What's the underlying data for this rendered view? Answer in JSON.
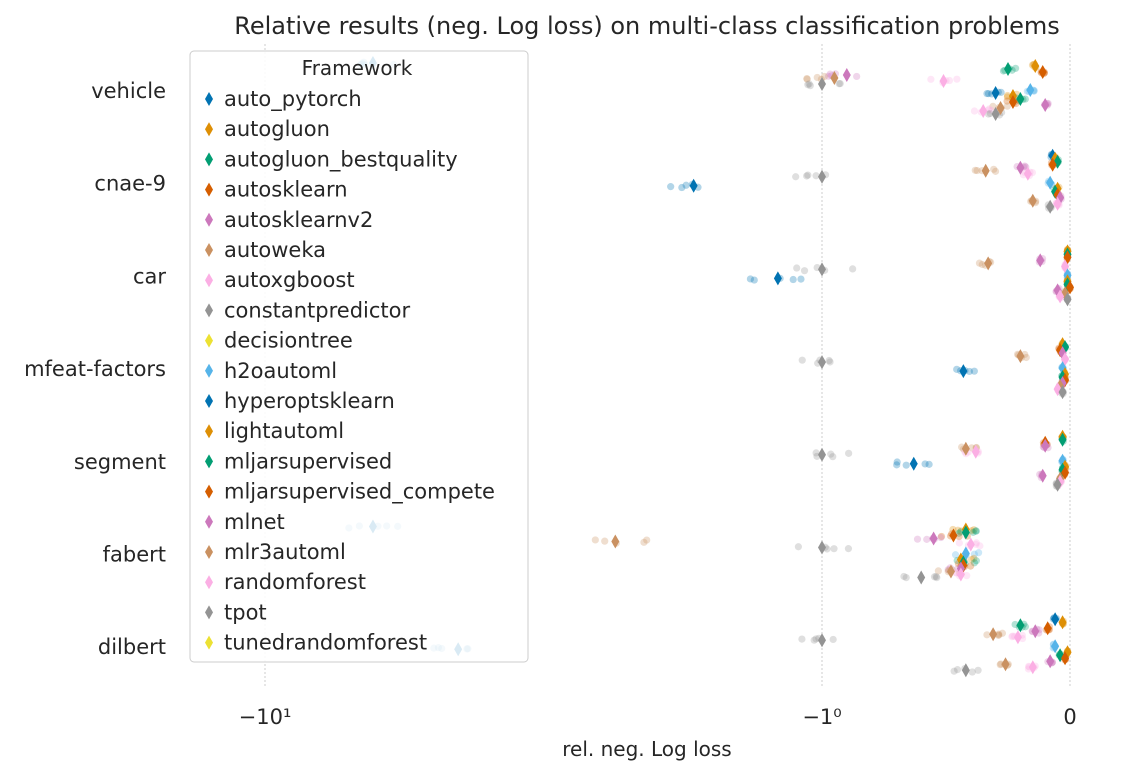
{
  "chart_data": {
    "type": "scatter",
    "title": "Relative results (neg. Log loss) on  multi-class classification problems",
    "xlabel": "rel. neg. Log loss",
    "ylabel": "",
    "x_scale": "symlog",
    "x_ticks": [
      {
        "value": -10,
        "label": "−10¹"
      },
      {
        "value": -1,
        "label": "−1⁰"
      },
      {
        "value": 0,
        "label": "0"
      }
    ],
    "xlim": [
      -14,
      0.03
    ],
    "grid": true,
    "legend": {
      "title": "Framework",
      "placement": "upper-left"
    },
    "categories": [
      "vehicle",
      "cnae-9",
      "car",
      "mfeat-factors",
      "segment",
      "fabert",
      "dilbert"
    ],
    "series": [
      {
        "name": "auto_pytorch",
        "color": "#0173b2",
        "medians": [
          -6.4,
          -0.07,
          null,
          null,
          null,
          -6.4,
          -0.06
        ]
      },
      {
        "name": "autogluon",
        "color": "#de8f05",
        "medians": [
          -0.14,
          -0.06,
          -0.01,
          -0.03,
          -0.03,
          -0.42,
          -0.03
        ]
      },
      {
        "name": "autogluon_bestquality",
        "color": "#029e73",
        "medians": [
          -0.25,
          -0.05,
          -0.01,
          -0.02,
          -0.03,
          -0.42,
          -0.2
        ]
      },
      {
        "name": "autosklearn",
        "color": "#d55e00",
        "medians": [
          -0.11,
          -0.07,
          -0.01,
          -0.04,
          -0.1,
          -0.47,
          -0.09
        ]
      },
      {
        "name": "autosklearnv2",
        "color": "#cc78bc",
        "medians": [
          -0.9,
          -0.2,
          -0.12,
          -0.03,
          -0.1,
          -0.55,
          -0.14
        ]
      },
      {
        "name": "autoweka",
        "color": "#ca9161",
        "medians": [
          -0.95,
          -0.34,
          -0.33,
          -0.2,
          -0.42,
          -2.35,
          -0.31
        ]
      },
      {
        "name": "autoxgboost",
        "color": "#fbafe4",
        "medians": [
          -0.51,
          -0.17,
          -0.02,
          -0.02,
          -0.38,
          -0.4,
          -0.21
        ]
      },
      {
        "name": "constantpredictor",
        "color": "#949494",
        "medians": [
          -1.0,
          -1.0,
          -1.0,
          -1.0,
          -1.0,
          -1.0,
          -1.0
        ]
      },
      {
        "name": "decisiontree",
        "color": "#ece133",
        "medians": [
          null,
          null,
          null,
          null,
          null,
          null,
          null
        ]
      },
      {
        "name": "h2oautoml",
        "color": "#56b4e9",
        "medians": [
          -0.16,
          -0.08,
          -0.01,
          -0.03,
          -0.03,
          -0.42,
          -0.06
        ]
      },
      {
        "name": "hyperoptsklearn",
        "color": "#0173b2",
        "medians": [
          -0.3,
          -1.7,
          -1.2,
          -0.43,
          -0.63,
          null,
          -4.5
        ]
      },
      {
        "name": "lightautoml",
        "color": "#de8f05",
        "medians": [
          -0.23,
          -0.05,
          -0.01,
          -0.02,
          -0.02,
          -0.44,
          -0.01
        ]
      },
      {
        "name": "mljarsupervised",
        "color": "#029e73",
        "medians": [
          -0.2,
          -0.06,
          -0.01,
          -0.03,
          -0.03,
          -0.43,
          -0.04
        ]
      },
      {
        "name": "mljarsupervised_compete",
        "color": "#d55e00",
        "medians": [
          -0.23,
          -0.05,
          0,
          -0.02,
          -0.02,
          -0.43,
          -0.02
        ]
      },
      {
        "name": "mlnet",
        "color": "#cc78bc",
        "medians": [
          -0.1,
          -0.04,
          -0.05,
          -0.03,
          -0.11,
          -0.44,
          -0.08
        ]
      },
      {
        "name": "mlr3automl",
        "color": "#ca9161",
        "medians": [
          -0.28,
          -0.15,
          -0.02,
          -0.04,
          -0.04,
          -0.48,
          -0.26
        ]
      },
      {
        "name": "randomforest",
        "color": "#fbafe4",
        "medians": [
          -0.35,
          -0.05,
          -0.04,
          -0.05,
          -0.04,
          -0.44,
          -0.15
        ]
      },
      {
        "name": "tpot",
        "color": "#949494",
        "medians": [
          -0.3,
          -0.08,
          -0.01,
          -0.03,
          -0.05,
          -0.6,
          -0.42
        ]
      },
      {
        "name": "tunedrandomforest",
        "color": "#ece133",
        "medians": [
          null,
          null,
          null,
          null,
          null,
          null,
          null
        ]
      }
    ]
  }
}
